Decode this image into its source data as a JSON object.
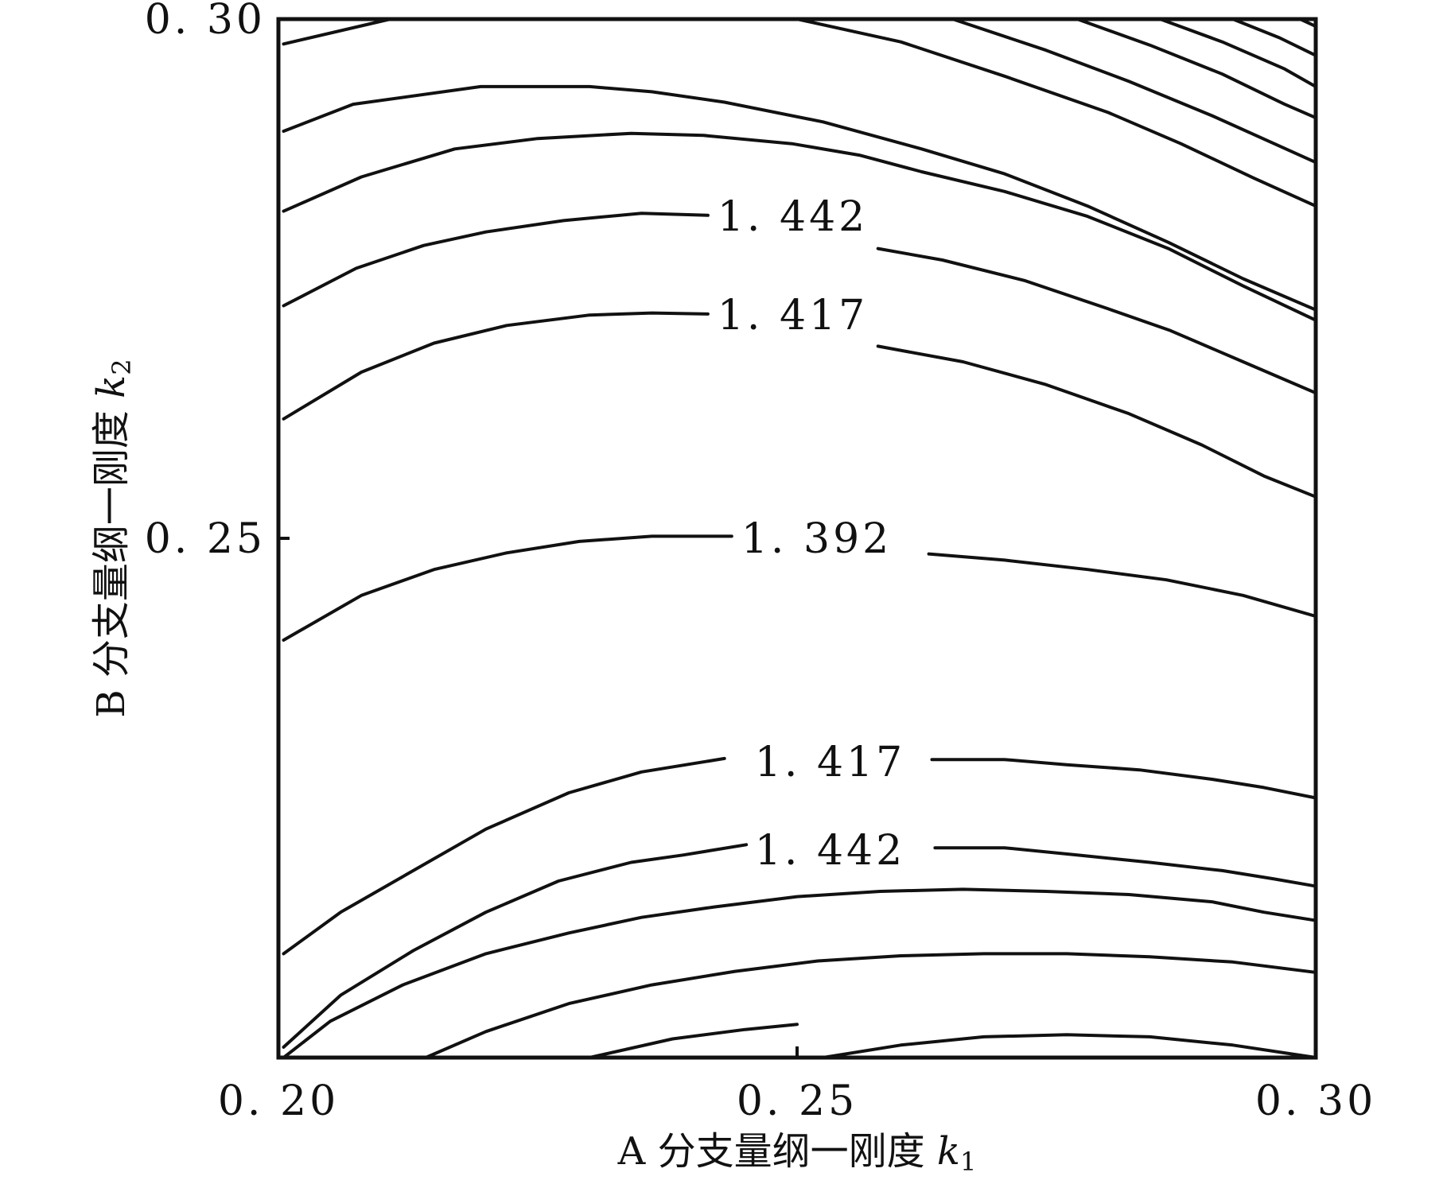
{
  "chart_data": {
    "type": "contour",
    "xlabel": {
      "prefix": "A 分支量纲一刚度 ",
      "var": "k",
      "sub": "1"
    },
    "ylabel": {
      "prefix": "B 分支量纲一刚度 ",
      "var": "k",
      "sub": "2"
    },
    "xlim": [
      0.2,
      0.3
    ],
    "ylim": [
      0.2,
      0.3
    ],
    "xticks": [
      {
        "value": 0.2,
        "label": "0. 20"
      },
      {
        "value": 0.25,
        "label": "0. 25"
      },
      {
        "value": 0.3,
        "label": "0. 30"
      }
    ],
    "yticks": [
      {
        "value": 0.25,
        "label": "0. 25"
      },
      {
        "value": 0.3,
        "label": "0. 30"
      }
    ],
    "grid": false,
    "legend": false,
    "labels": [
      {
        "text": "1. 442",
        "x": 0.2414,
        "y": 0.281
      },
      {
        "text": "1. 417",
        "x": 0.2414,
        "y": 0.2715
      },
      {
        "text": "1. 392",
        "x": 0.2437,
        "y": 0.25
      },
      {
        "text": "1. 417",
        "x": 0.245,
        "y": 0.2285
      },
      {
        "text": "1. 442",
        "x": 0.245,
        "y": 0.22
      }
    ],
    "contours": [
      {
        "level": "upper-1",
        "points": [
          [
            0.2005,
            0.2976
          ],
          [
            0.2108,
            0.3
          ]
        ]
      },
      {
        "level": "upper-2",
        "points": [
          [
            0.2005,
            0.2892
          ],
          [
            0.2072,
            0.2918
          ],
          [
            0.2195,
            0.2935
          ],
          [
            0.23,
            0.2935
          ],
          [
            0.236,
            0.293
          ],
          [
            0.243,
            0.292
          ],
          [
            0.2525,
            0.2901
          ],
          [
            0.262,
            0.2875
          ],
          [
            0.27,
            0.2851
          ],
          [
            0.278,
            0.282
          ],
          [
            0.2858,
            0.2785
          ],
          [
            0.293,
            0.275
          ],
          [
            0.3,
            0.272
          ]
        ]
      },
      {
        "level": "upper-3",
        "points": [
          [
            0.2005,
            0.2815
          ],
          [
            0.208,
            0.2848
          ],
          [
            0.217,
            0.2875
          ],
          [
            0.225,
            0.2885
          ],
          [
            0.234,
            0.289
          ],
          [
            0.241,
            0.2888
          ],
          [
            0.2495,
            0.288
          ],
          [
            0.256,
            0.2869
          ],
          [
            0.262,
            0.2853
          ],
          [
            0.27,
            0.2834
          ],
          [
            0.278,
            0.281
          ],
          [
            0.2858,
            0.2779
          ],
          [
            0.293,
            0.2743
          ],
          [
            0.3,
            0.271
          ]
        ]
      },
      {
        "level": "1.442 upper",
        "points": [
          [
            0.2005,
            0.2724
          ],
          [
            0.2075,
            0.276
          ],
          [
            0.214,
            0.2782
          ],
          [
            0.22,
            0.2795
          ],
          [
            0.2275,
            0.2806
          ],
          [
            0.235,
            0.2813
          ],
          [
            0.2414,
            0.2811
          ]
        ]
      },
      {
        "level": "1.442 upper r",
        "points": [
          [
            0.2578,
            0.2779
          ],
          [
            0.264,
            0.2768
          ],
          [
            0.272,
            0.2748
          ],
          [
            0.28,
            0.2721
          ],
          [
            0.286,
            0.27
          ],
          [
            0.293,
            0.267
          ],
          [
            0.3,
            0.264
          ]
        ]
      },
      {
        "level": "1.417 upper",
        "points": [
          [
            0.2005,
            0.2615
          ],
          [
            0.208,
            0.266
          ],
          [
            0.215,
            0.2688
          ],
          [
            0.222,
            0.2705
          ],
          [
            0.23,
            0.2715
          ],
          [
            0.236,
            0.2717
          ],
          [
            0.2414,
            0.2716
          ]
        ]
      },
      {
        "level": "1.417 upper r",
        "points": [
          [
            0.2578,
            0.2685
          ],
          [
            0.266,
            0.267
          ],
          [
            0.274,
            0.2648
          ],
          [
            0.282,
            0.262
          ],
          [
            0.289,
            0.259
          ],
          [
            0.295,
            0.256
          ],
          [
            0.3,
            0.254
          ]
        ]
      },
      {
        "level": "1.392 left",
        "points": [
          [
            0.2005,
            0.2402
          ],
          [
            0.208,
            0.2445
          ],
          [
            0.215,
            0.247
          ],
          [
            0.222,
            0.2486
          ],
          [
            0.229,
            0.2497
          ],
          [
            0.236,
            0.2502
          ],
          [
            0.2437,
            0.2502
          ]
        ]
      },
      {
        "level": "1.392 right",
        "points": [
          [
            0.2627,
            0.2485
          ],
          [
            0.27,
            0.2479
          ],
          [
            0.278,
            0.247
          ],
          [
            0.2856,
            0.246
          ],
          [
            0.293,
            0.2445
          ],
          [
            0.3,
            0.2425
          ]
        ]
      },
      {
        "level": "1.417 lower",
        "points": [
          [
            0.2005,
            0.21
          ],
          [
            0.206,
            0.214
          ],
          [
            0.213,
            0.218
          ],
          [
            0.22,
            0.222
          ],
          [
            0.228,
            0.2255
          ],
          [
            0.235,
            0.2275
          ],
          [
            0.243,
            0.2288
          ]
        ]
      },
      {
        "level": "1.417 lower r",
        "points": [
          [
            0.263,
            0.2287
          ],
          [
            0.27,
            0.2287
          ],
          [
            0.276,
            0.2282
          ],
          [
            0.283,
            0.2277
          ],
          [
            0.29,
            0.2268
          ],
          [
            0.295,
            0.226
          ],
          [
            0.3,
            0.225
          ]
        ]
      },
      {
        "level": "1.442 lower",
        "points": [
          [
            0.2005,
            0.201
          ],
          [
            0.206,
            0.206
          ],
          [
            0.213,
            0.2103
          ],
          [
            0.22,
            0.214
          ],
          [
            0.227,
            0.217
          ],
          [
            0.234,
            0.2188
          ],
          [
            0.239,
            0.2195
          ],
          [
            0.2451,
            0.2205
          ]
        ]
      },
      {
        "level": "1.442 lower r",
        "points": [
          [
            0.2633,
            0.2202
          ],
          [
            0.27,
            0.2202
          ],
          [
            0.277,
            0.2195
          ],
          [
            0.284,
            0.2188
          ],
          [
            0.291,
            0.218
          ],
          [
            0.296,
            0.2172
          ],
          [
            0.3,
            0.2165
          ]
        ]
      },
      {
        "level": "lower-3",
        "points": [
          [
            0.2005,
            0.2
          ],
          [
            0.205,
            0.2035
          ],
          [
            0.212,
            0.207
          ],
          [
            0.22,
            0.21
          ],
          [
            0.228,
            0.212
          ],
          [
            0.235,
            0.2135
          ],
          [
            0.242,
            0.2145
          ],
          [
            0.25,
            0.2155
          ],
          [
            0.258,
            0.216
          ],
          [
            0.266,
            0.2162
          ],
          [
            0.274,
            0.216
          ],
          [
            0.282,
            0.2157
          ],
          [
            0.29,
            0.215
          ],
          [
            0.295,
            0.214
          ],
          [
            0.3,
            0.2132
          ]
        ]
      },
      {
        "level": "lower-2",
        "points": [
          [
            0.2142,
            0.2
          ],
          [
            0.22,
            0.2025
          ],
          [
            0.228,
            0.2052
          ],
          [
            0.236,
            0.207
          ],
          [
            0.244,
            0.2083
          ],
          [
            0.252,
            0.2093
          ],
          [
            0.26,
            0.2098
          ],
          [
            0.268,
            0.21
          ],
          [
            0.276,
            0.21
          ],
          [
            0.284,
            0.2097
          ],
          [
            0.292,
            0.2092
          ],
          [
            0.3,
            0.2082
          ]
        ]
      },
      {
        "level": "lower-1",
        "points": [
          [
            0.23,
            0.2
          ],
          [
            0.238,
            0.2018
          ],
          [
            0.245,
            0.2027
          ],
          [
            0.25,
            0.2032
          ]
        ]
      },
      {
        "level": "lower-0",
        "points": [
          [
            0.2525,
            0.2
          ],
          [
            0.26,
            0.2012
          ],
          [
            0.268,
            0.202
          ],
          [
            0.276,
            0.2022
          ],
          [
            0.284,
            0.202
          ],
          [
            0.292,
            0.2012
          ],
          [
            0.3,
            0.2
          ]
        ]
      },
      {
        "level": "tr-1",
        "points": [
          [
            0.25,
            0.3
          ],
          [
            0.26,
            0.2978
          ],
          [
            0.27,
            0.2945
          ],
          [
            0.28,
            0.291
          ],
          [
            0.287,
            0.288
          ],
          [
            0.294,
            0.2847
          ],
          [
            0.3,
            0.282
          ]
        ]
      },
      {
        "level": "tr-2",
        "points": [
          [
            0.265,
            0.3
          ],
          [
            0.274,
            0.297
          ],
          [
            0.282,
            0.294
          ],
          [
            0.29,
            0.2907
          ],
          [
            0.296,
            0.288
          ],
          [
            0.3,
            0.2862
          ]
        ]
      },
      {
        "level": "tr-3",
        "points": [
          [
            0.277,
            0.3
          ],
          [
            0.284,
            0.2975
          ],
          [
            0.291,
            0.2947
          ],
          [
            0.297,
            0.2918
          ],
          [
            0.3,
            0.2905
          ]
        ]
      },
      {
        "level": "tr-4",
        "points": [
          [
            0.285,
            0.3
          ],
          [
            0.291,
            0.2978
          ],
          [
            0.297,
            0.2952
          ],
          [
            0.3,
            0.2935
          ]
        ]
      },
      {
        "level": "tr-5",
        "points": [
          [
            0.292,
            0.3
          ],
          [
            0.2965,
            0.2982
          ],
          [
            0.3,
            0.2965
          ]
        ]
      },
      {
        "level": "tr-6",
        "points": [
          [
            0.2985,
            0.3
          ],
          [
            0.3,
            0.2993
          ]
        ]
      }
    ]
  }
}
